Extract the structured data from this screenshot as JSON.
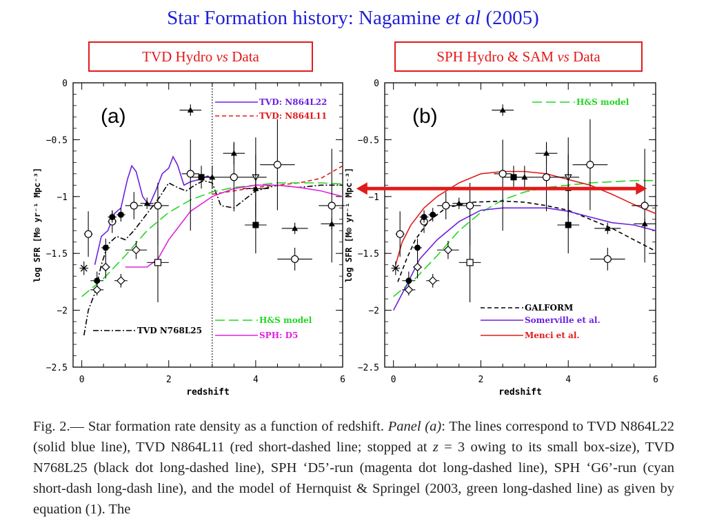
{
  "header": {
    "title_prefix": "Star Formation history: Nagamine ",
    "title_em": "et al",
    "title_suffix": " (2005)"
  },
  "labels": {
    "box_a_pre": "TVD Hydro ",
    "box_a_em": "vs",
    "box_a_post": " Data",
    "box_b_pre": "SPH Hydro & SAM ",
    "box_b_em": "vs",
    "box_b_post": " Data"
  },
  "caption": {
    "t1": "Fig. 2.— Star formation rate density as a function of redshift. ",
    "t2": "Panel (a)",
    "t3": ": The lines correspond to TVD N864L22 (solid blue line), TVD N864L11 (red short-dashed line; stopped at ",
    "t4": "z",
    "t5": " = 3 owing to its small box-size), TVD N768L25 (black dot long-dashed line), SPH ‘D5’-run (magenta dot long-dashed line), SPH ‘G6’-run (cyan short-dash long-dash line), and the model of Hernquist & Springel (2003, green long-dashed line) as given by equation (1). The"
  },
  "colors": {
    "title": "#1f1fd6",
    "box": "#e21a1a",
    "blue": "#6a20e0",
    "red": "#e21a1a",
    "green": "#22d622",
    "magenta": "#e020e0",
    "black": "#000000"
  },
  "chart_data": [
    {
      "type": "line",
      "panel_label": "(a)",
      "xlabel": "redshift",
      "ylabel": "log SFR [M⊙ yr⁻¹ Mpc⁻³]",
      "xlim": [
        -0.2,
        6
      ],
      "ylim": [
        -2.5,
        0
      ],
      "xticks": [
        0,
        2,
        4,
        6
      ],
      "yticks": [
        0,
        -0.5,
        -1,
        -1.5,
        -2,
        -2.5
      ],
      "xticklabels": [
        "0",
        "2",
        "4",
        "6"
      ],
      "yticklabels": [
        "0",
        "−0.5",
        "−1",
        "−1.5",
        "−2",
        "−2.5"
      ],
      "vline_x": 3,
      "series": [
        {
          "name": "TVD: N864L22",
          "color": "#6a20e0",
          "dash": "",
          "legend_pos": "top-right-1",
          "points": [
            [
              0.3,
              -1.6
            ],
            [
              0.45,
              -1.35
            ],
            [
              0.6,
              -1.3
            ],
            [
              0.75,
              -1.15
            ],
            [
              0.9,
              -1.1
            ],
            [
              1.05,
              -0.85
            ],
            [
              1.15,
              -0.73
            ],
            [
              1.25,
              -0.78
            ],
            [
              1.4,
              -1.0
            ],
            [
              1.55,
              -1.08
            ],
            [
              1.7,
              -0.95
            ],
            [
              1.85,
              -0.8
            ],
            [
              2.0,
              -0.75
            ],
            [
              2.1,
              -0.65
            ],
            [
              2.2,
              -0.72
            ],
            [
              2.35,
              -0.9
            ],
            [
              2.5,
              -0.87
            ],
            [
              2.7,
              -0.85
            ],
            [
              2.9,
              -0.82
            ],
            [
              3.0,
              -0.85
            ]
          ]
        },
        {
          "name": "TVD: N864L11",
          "color": "#e21a1a",
          "dash": "6,4",
          "legend_pos": "top-right-2",
          "points": [
            [
              3.0,
              -0.98
            ],
            [
              3.5,
              -0.95
            ],
            [
              4.0,
              -0.92
            ],
            [
              4.5,
              -0.9
            ],
            [
              5.0,
              -0.88
            ],
            [
              5.5,
              -0.84
            ],
            [
              6.0,
              -0.73
            ]
          ]
        },
        {
          "name": "TVD N768L25",
          "color": "#000000",
          "dash": "8,3,2,3",
          "legend_pos": "bottom-left",
          "points": [
            [
              0.05,
              -2.22
            ],
            [
              0.15,
              -2.0
            ],
            [
              0.3,
              -1.85
            ],
            [
              0.45,
              -1.6
            ],
            [
              0.6,
              -1.42
            ],
            [
              0.8,
              -1.35
            ],
            [
              1.0,
              -1.38
            ],
            [
              1.2,
              -1.3
            ],
            [
              1.4,
              -1.2
            ],
            [
              1.6,
              -1.1
            ],
            [
              1.8,
              -1.0
            ],
            [
              2.0,
              -0.88
            ],
            [
              2.2,
              -0.92
            ],
            [
              2.4,
              -0.95
            ],
            [
              2.6,
              -0.9
            ],
            [
              2.8,
              -0.86
            ],
            [
              3.0,
              -0.88
            ],
            [
              3.2,
              -1.08
            ],
            [
              3.5,
              -1.1
            ],
            [
              4.0,
              -0.95
            ],
            [
              4.5,
              -0.9
            ],
            [
              5.0,
              -0.92
            ],
            [
              5.5,
              -0.9
            ],
            [
              6.0,
              -0.9
            ]
          ]
        },
        {
          "name": "H&S model",
          "color": "#22d622",
          "dash": "14,6",
          "legend_pos": "bottom-right-1",
          "points": [
            [
              0.0,
              -1.88
            ],
            [
              0.5,
              -1.72
            ],
            [
              1.0,
              -1.52
            ],
            [
              1.5,
              -1.3
            ],
            [
              2.0,
              -1.14
            ],
            [
              2.5,
              -1.03
            ],
            [
              3.0,
              -0.96
            ],
            [
              3.5,
              -0.92
            ],
            [
              4.0,
              -0.9
            ],
            [
              4.5,
              -0.88
            ],
            [
              5.0,
              -0.88
            ],
            [
              5.5,
              -0.88
            ],
            [
              6.0,
              -0.89
            ]
          ]
        },
        {
          "name": "SPH: D5",
          "color": "#e020e0",
          "dash": "",
          "legend_pos": "bottom-right-2",
          "points": [
            [
              1.0,
              -1.62
            ],
            [
              1.5,
              -1.62
            ],
            [
              1.75,
              -1.55
            ],
            [
              2.0,
              -1.38
            ],
            [
              2.5,
              -1.13
            ],
            [
              3.0,
              -1.0
            ],
            [
              3.5,
              -0.93
            ],
            [
              4.0,
              -0.9
            ],
            [
              4.5,
              -0.9
            ],
            [
              5.0,
              -0.92
            ],
            [
              5.5,
              -0.95
            ],
            [
              6.0,
              -1.0
            ]
          ]
        }
      ]
    },
    {
      "type": "line",
      "panel_label": "(b)",
      "xlabel": "redshift",
      "ylabel": "log SFR [M⊙ yr⁻¹ Mpc⁻³]",
      "xlim": [
        -0.2,
        6
      ],
      "ylim": [
        -2.5,
        0
      ],
      "xticks": [
        0,
        2,
        4,
        6
      ],
      "yticks": [
        0,
        -0.5,
        -1,
        -1.5,
        -2,
        -2.5
      ],
      "xticklabels": [
        "0",
        "2",
        "4",
        "6"
      ],
      "yticklabels": [
        "0",
        "−0.5",
        "−1",
        "−1.5",
        "−2",
        "−2.5"
      ],
      "arrow": {
        "x_start": -0.85,
        "x_end": 5.8,
        "y": -0.93
      },
      "series": [
        {
          "name": "H&S model",
          "color": "#22d622",
          "dash": "14,6",
          "legend_pos": "top-right-1",
          "points": [
            [
              0.0,
              -1.88
            ],
            [
              0.5,
              -1.72
            ],
            [
              1.0,
              -1.52
            ],
            [
              1.5,
              -1.3
            ],
            [
              2.0,
              -1.14
            ],
            [
              2.5,
              -1.03
            ],
            [
              3.0,
              -0.96
            ],
            [
              3.5,
              -0.92
            ],
            [
              4.0,
              -0.9
            ],
            [
              4.5,
              -0.88
            ],
            [
              5.0,
              -0.87
            ],
            [
              5.5,
              -0.86
            ],
            [
              6.0,
              -0.86
            ]
          ]
        },
        {
          "name": "GALFORM",
          "color": "#000000",
          "dash": "6,4",
          "legend_pos": "bottom-right-1",
          "points": [
            [
              0.1,
              -1.75
            ],
            [
              0.3,
              -1.55
            ],
            [
              0.5,
              -1.38
            ],
            [
              0.8,
              -1.22
            ],
            [
              1.2,
              -1.1
            ],
            [
              1.8,
              -1.05
            ],
            [
              2.5,
              -1.04
            ],
            [
              3.0,
              -1.05
            ],
            [
              3.5,
              -1.08
            ],
            [
              4.0,
              -1.12
            ],
            [
              4.5,
              -1.2
            ],
            [
              5.0,
              -1.28
            ],
            [
              5.5,
              -1.38
            ],
            [
              6.0,
              -1.48
            ]
          ]
        },
        {
          "name": "Somerville et al.",
          "color": "#6a20e0",
          "dash": "",
          "legend_pos": "bottom-right-2",
          "points": [
            [
              0.0,
              -2.0
            ],
            [
              0.3,
              -1.78
            ],
            [
              0.6,
              -1.55
            ],
            [
              1.0,
              -1.38
            ],
            [
              1.5,
              -1.22
            ],
            [
              2.0,
              -1.12
            ],
            [
              2.5,
              -1.1
            ],
            [
              3.0,
              -1.1
            ],
            [
              3.5,
              -1.1
            ],
            [
              4.0,
              -1.13
            ],
            [
              4.5,
              -1.18
            ],
            [
              5.0,
              -1.23
            ],
            [
              5.5,
              -1.25
            ],
            [
              6.0,
              -1.3
            ]
          ]
        },
        {
          "name": "Menci et al.",
          "color": "#e21a1a",
          "dash": "",
          "legend_pos": "bottom-right-3",
          "points": [
            [
              0.05,
              -1.6
            ],
            [
              0.2,
              -1.4
            ],
            [
              0.4,
              -1.25
            ],
            [
              0.7,
              -1.1
            ],
            [
              1.0,
              -1.0
            ],
            [
              1.5,
              -0.88
            ],
            [
              2.0,
              -0.8
            ],
            [
              2.5,
              -0.78
            ],
            [
              3.0,
              -0.78
            ],
            [
              3.5,
              -0.8
            ],
            [
              4.0,
              -0.85
            ],
            [
              4.5,
              -0.9
            ],
            [
              5.0,
              -0.98
            ],
            [
              5.5,
              -1.07
            ],
            [
              6.0,
              -1.15
            ]
          ]
        }
      ]
    }
  ],
  "observations": {
    "note": "data points shared by both panels: [z, logSFR, xerr, yerr_minus, yerr_plus, marker]",
    "points": [
      [
        0.05,
        -1.63,
        0.1,
        0.06,
        0.06,
        "cross"
      ],
      [
        0.15,
        -1.33,
        0.1,
        0.2,
        0.2,
        "circle"
      ],
      [
        0.35,
        -1.74,
        0.15,
        0.08,
        0.08,
        "filled"
      ],
      [
        0.35,
        -1.82,
        0.15,
        0.05,
        0.05,
        "diamond"
      ],
      [
        0.55,
        -1.45,
        0.1,
        0.08,
        0.08,
        "filled"
      ],
      [
        0.55,
        -1.62,
        0.1,
        0.1,
        0.1,
        "diamond"
      ],
      [
        0.7,
        -1.22,
        0.1,
        0.1,
        0.1,
        "circle"
      ],
      [
        0.7,
        -1.18,
        0.1,
        0.05,
        0.05,
        "filled"
      ],
      [
        0.9,
        -1.16,
        0.1,
        0.06,
        0.06,
        "filled"
      ],
      [
        0.9,
        -1.74,
        0.15,
        0.06,
        0.06,
        "diamond"
      ],
      [
        1.2,
        -1.08,
        0.2,
        0.12,
        0.12,
        "circle"
      ],
      [
        1.25,
        -1.47,
        0.25,
        0.08,
        0.08,
        "diamond"
      ],
      [
        1.5,
        -1.06,
        0.15,
        0.05,
        0.05,
        "triangle"
      ],
      [
        1.75,
        -1.08,
        0.25,
        0.35,
        0.2,
        "circle"
      ],
      [
        1.75,
        -1.58,
        0.25,
        0.35,
        0.3,
        "square"
      ],
      [
        2.5,
        -0.24,
        0.25,
        0.05,
        0.05,
        "triangle"
      ],
      [
        2.5,
        -0.8,
        0.2,
        0.5,
        0.3,
        "circle"
      ],
      [
        2.75,
        -0.83,
        0.25,
        0.1,
        0.1,
        "filled-square"
      ],
      [
        3.0,
        -0.83,
        0.25,
        0.1,
        0.1,
        "triangle"
      ],
      [
        3.5,
        -0.62,
        0.25,
        0.1,
        0.1,
        "triangle"
      ],
      [
        3.5,
        -0.83,
        0.25,
        0.3,
        0.3,
        "circle"
      ],
      [
        4.0,
        -1.25,
        0.25,
        0.25,
        0.2,
        "filled-square"
      ],
      [
        4.0,
        -0.83,
        0.25,
        0.35,
        0.35,
        "triangle-down"
      ],
      [
        4.5,
        -0.72,
        0.4,
        0.4,
        0.4,
        "circle"
      ],
      [
        4.0,
        -0.93,
        0.3,
        0.3,
        0.3,
        "triangle"
      ],
      [
        4.9,
        -1.55,
        0.4,
        0.1,
        0.1,
        "circle"
      ],
      [
        4.9,
        -1.28,
        0.3,
        0.05,
        0.05,
        "triangle"
      ],
      [
        5.75,
        -1.08,
        0.3,
        0.5,
        0.5,
        "circle"
      ],
      [
        5.75,
        -1.24,
        0.25,
        0.05,
        0.05,
        "triangle"
      ]
    ]
  }
}
